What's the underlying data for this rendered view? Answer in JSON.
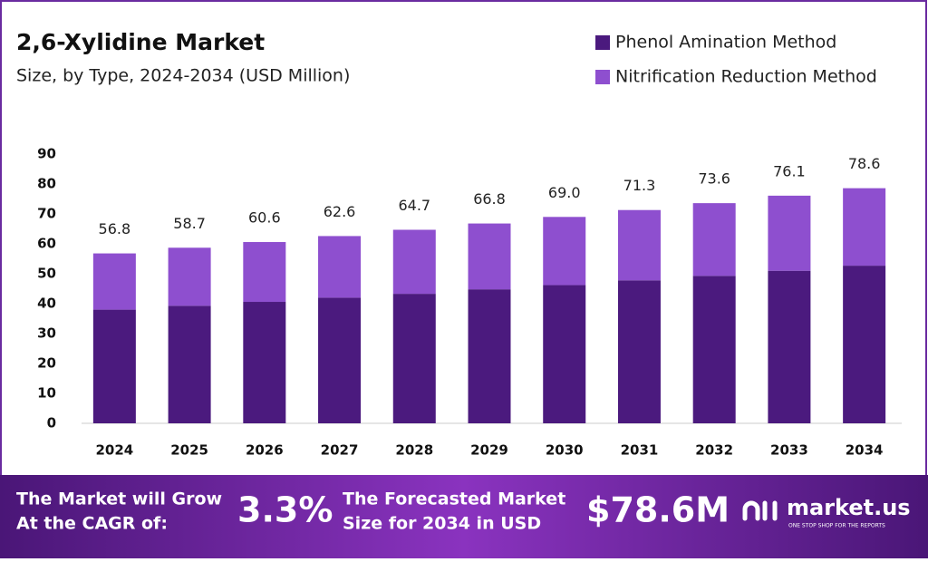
{
  "chart_data": {
    "type": "stacked_bar",
    "title": "2,6-Xylidine Market",
    "subtitle": "Size, by Type, 2024-2034 (USD Million)",
    "categories": [
      "2024",
      "2025",
      "2026",
      "2027",
      "2028",
      "2029",
      "2030",
      "2031",
      "2032",
      "2033",
      "2034"
    ],
    "series": [
      {
        "name": "Phenol Amination Method",
        "color": "#4b1a7e",
        "values": [
          38.0,
          39.3,
          40.6,
          42.0,
          43.3,
          44.8,
          46.2,
          47.8,
          49.3,
          51.0,
          52.7
        ]
      },
      {
        "name": "Nitrification Reduction Method",
        "color": "#8e4fcf",
        "values": [
          18.8,
          19.4,
          20.0,
          20.6,
          21.4,
          22.0,
          22.8,
          23.5,
          24.3,
          25.1,
          25.9
        ]
      }
    ],
    "totals": {
      "values": [
        56.8,
        58.7,
        60.6,
        62.6,
        64.7,
        66.8,
        69.0,
        71.3,
        73.6,
        76.1,
        78.6
      ],
      "value_labels": [
        "56.8",
        "58.7",
        "60.6",
        "62.6",
        "64.7",
        "66.8",
        "69.0",
        "71.3",
        "73.6",
        "76.1",
        "78.6"
      ]
    },
    "ylim": [
      0,
      90
    ],
    "yticks": [
      0,
      10,
      20,
      30,
      40,
      50,
      60,
      70,
      80,
      90
    ],
    "grid": false,
    "legend": "top-right"
  },
  "banner": {
    "cagr_text": [
      "The Market will Grow",
      "At the CAGR of:"
    ],
    "cagr": "3.3%",
    "forecast_text": [
      "The Forecasted Market",
      "Size for 2034 in USD"
    ],
    "forecast": "$78.6M",
    "logo": "market.us",
    "tagline": "ONE STOP SHOP FOR THE REPORTS"
  }
}
